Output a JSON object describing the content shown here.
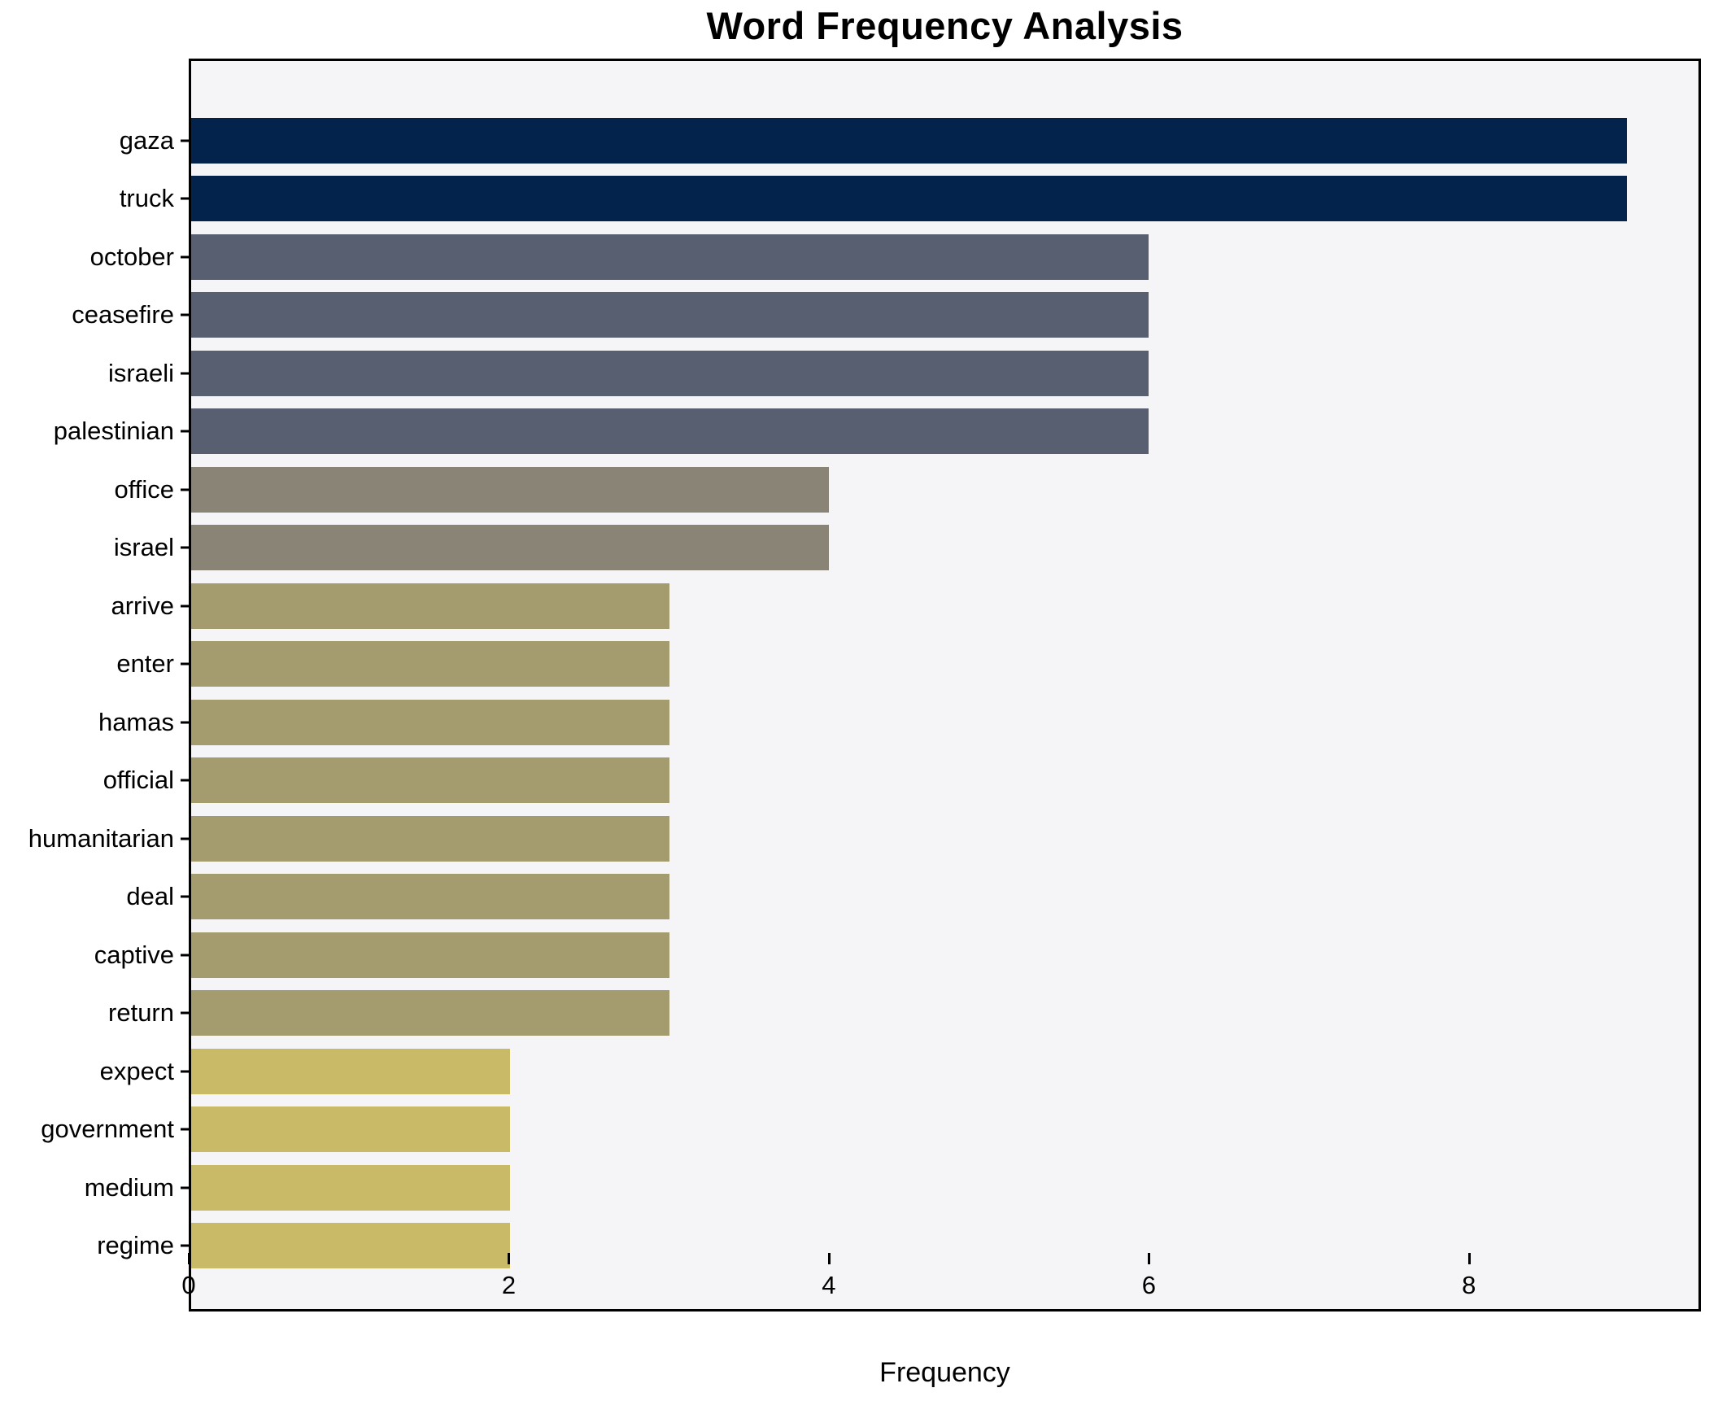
{
  "chart_data": {
    "type": "bar",
    "orientation": "horizontal",
    "title": "Word Frequency Analysis",
    "xlabel": "Frequency",
    "ylabel": "",
    "categories": [
      "gaza",
      "truck",
      "october",
      "ceasefire",
      "israeli",
      "palestinian",
      "office",
      "israel",
      "arrive",
      "enter",
      "hamas",
      "official",
      "humanitarian",
      "deal",
      "captive",
      "return",
      "expect",
      "government",
      "medium",
      "regime"
    ],
    "values": [
      9,
      9,
      6,
      6,
      6,
      6,
      4,
      4,
      3,
      3,
      3,
      3,
      3,
      3,
      3,
      3,
      2,
      2,
      2,
      2
    ],
    "bar_colors": [
      "#03224c",
      "#03224c",
      "#575f70",
      "#575f70",
      "#575f70",
      "#575f70",
      "#8a8477",
      "#8a8477",
      "#a49b6f",
      "#a49b6f",
      "#a49b6f",
      "#a49b6f",
      "#a49b6f",
      "#a49b6f",
      "#a49b6f",
      "#a49b6f",
      "#c9ba68",
      "#c9ba68",
      "#c9ba68",
      "#c9ba68"
    ],
    "x_ticks": [
      0,
      2,
      4,
      6,
      8
    ],
    "xlim": [
      0,
      9.45
    ],
    "grid": false,
    "legend": null,
    "plot_background": "#f5f4f6",
    "outer_background": "#ffffff",
    "spine_color": "#000000"
  }
}
